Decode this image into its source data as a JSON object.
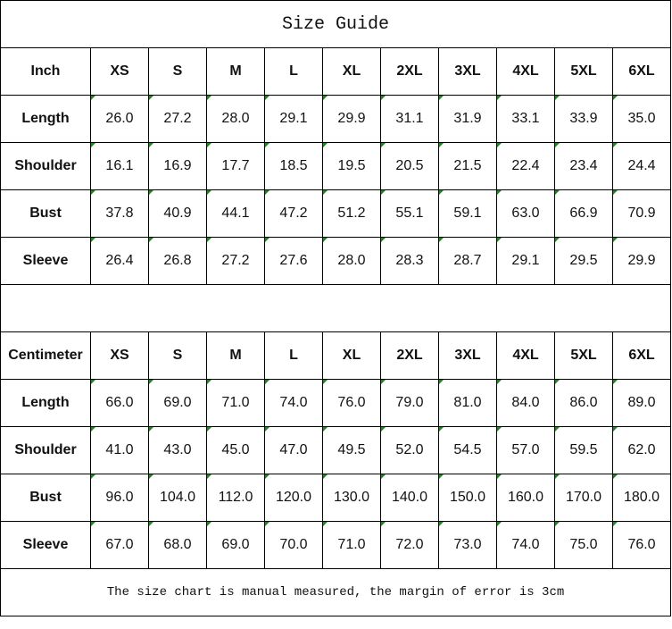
{
  "title": "Size Guide",
  "sizes": [
    "XS",
    "S",
    "M",
    "L",
    "XL",
    "2XL",
    "3XL",
    "4XL",
    "5XL",
    "6XL"
  ],
  "tables": [
    {
      "unit": "Inch",
      "rows": [
        {
          "label": "Length",
          "values": [
            "26.0",
            "27.2",
            "28.0",
            "29.1",
            "29.9",
            "31.1",
            "31.9",
            "33.1",
            "33.9",
            "35.0"
          ]
        },
        {
          "label": "Shoulder",
          "values": [
            "16.1",
            "16.9",
            "17.7",
            "18.5",
            "19.5",
            "20.5",
            "21.5",
            "22.4",
            "23.4",
            "24.4"
          ]
        },
        {
          "label": "Bust",
          "values": [
            "37.8",
            "40.9",
            "44.1",
            "47.2",
            "51.2",
            "55.1",
            "59.1",
            "63.0",
            "66.9",
            "70.9"
          ]
        },
        {
          "label": "Sleeve",
          "values": [
            "26.4",
            "26.8",
            "27.2",
            "27.6",
            "28.0",
            "28.3",
            "28.7",
            "29.1",
            "29.5",
            "29.9"
          ]
        }
      ]
    },
    {
      "unit": "Centimeter",
      "rows": [
        {
          "label": "Length",
          "values": [
            "66.0",
            "69.0",
            "71.0",
            "74.0",
            "76.0",
            "79.0",
            "81.0",
            "84.0",
            "86.0",
            "89.0"
          ]
        },
        {
          "label": "Shoulder",
          "values": [
            "41.0",
            "43.0",
            "45.0",
            "47.0",
            "49.5",
            "52.0",
            "54.5",
            "57.0",
            "59.5",
            "62.0"
          ]
        },
        {
          "label": "Bust",
          "values": [
            "96.0",
            "104.0",
            "112.0",
            "120.0",
            "130.0",
            "140.0",
            "150.0",
            "160.0",
            "170.0",
            "180.0"
          ]
        },
        {
          "label": "Sleeve",
          "values": [
            "67.0",
            "68.0",
            "69.0",
            "70.0",
            "71.0",
            "72.0",
            "73.0",
            "74.0",
            "75.0",
            "76.0"
          ]
        }
      ]
    }
  ],
  "footer": "The size chart is manual measured, the margin of error is 3cm",
  "colors": {
    "number_marker": "#1a8a1a",
    "border": "#000000"
  }
}
